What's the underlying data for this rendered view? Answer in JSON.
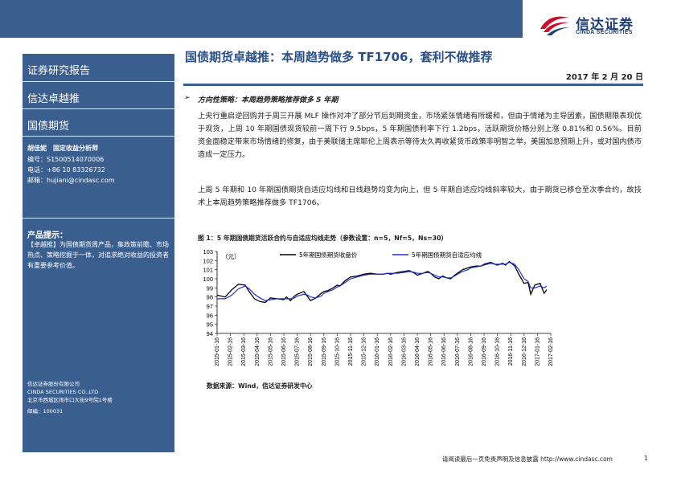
{
  "brand": {
    "name_cn": "信达证券",
    "name_en": "CINDA SECURITIES",
    "primary": "#3a5f8f",
    "accent_red": "#c8102e"
  },
  "sidebar": {
    "sections": [
      "证券研究报告",
      "信达卓越推",
      "国债期货"
    ],
    "analyst_name": "胡佳妮　固定收益分析师",
    "analyst_id": "编号：S1500514070006",
    "analyst_phone": "电话：+86 10 83326732",
    "analyst_email": "邮箱：hujiani@cindasc.com",
    "tips_title": "产品提示：",
    "tips_body": "【卓越推】为国债期货周产品，集政策前瞻、市场热点、策略挖掘于一体，对追求绝对收益的投资者有重要参考价值。",
    "company_cn": "信达证券股份有限公司",
    "company_en": "CINDA SECURITIES CO.,LTD",
    "company_addr": "北京市西城区闹市口大街9号院1号楼",
    "company_zip": "邮编：100031"
  },
  "report": {
    "title": "国债期货卓越推：本周趋势做多 TF1706，套利不做推荐",
    "date": "2017 年 2 月 20 日",
    "bullet": "➢",
    "section_head": "方向性策略：本周趋势策略推荐做多 5 年期",
    "para1": "上央行重启逆回购并于周三开展 MLF 操作对冲了部分节后到期资金，市场紧张情绪有所缓和，但由于情绪为主导因素，国债期限表现优于现货，上周 10 年期国债现货较前一周下行 9.5bps，5 年期国债利率下行 1.2bps，活跃期货价格分别上涨 0.81%和 0.56%。目前资金面稳定带来市场情绪的修复，由于美联储主席耶伦上周表示等待太久再收紧货币政策非明智之举，美国加息预期上升，或对国内债市造成一定压力。",
    "para2": "上周 5 年期和 10 年期国债期货自适应均线和日线趋势均变为向上，但 5 年期自适应均线斜率较大，由于期货已移仓至次季合约，故技术上本周趋势策略推荐做多 TF1706。",
    "figure_caption": "图 1：5 年期国债期货活跃合约与自适应均线走势（参数设置：n=5，Nf=5，Ns=30）",
    "source": "数据来源：Wind，信达证券研发中心"
  },
  "chart_data": {
    "type": "line",
    "title": "",
    "ylabel": "（元）",
    "xlabel": "",
    "ylim": [
      94,
      103
    ],
    "yticks": [
      94,
      95,
      96,
      97,
      98,
      99,
      100,
      101,
      102,
      103
    ],
    "x_tick_labels": [
      "2015-01-16",
      "2015-02-16",
      "2015-03-16",
      "2015-04-16",
      "2015-05-16",
      "2015-06-16",
      "2015-07-16",
      "2015-08-16",
      "2015-09-16",
      "2015-10-16",
      "2015-11-16",
      "2015-12-16",
      "2016-01-16",
      "2016-02-16",
      "2016-03-16",
      "2016-04-16",
      "2016-05-16",
      "2016-06-16",
      "2016-07-16",
      "2016-08-16",
      "2016-09-16",
      "2016-10-16",
      "2016-11-16",
      "2016-12-16",
      "2017-01-16",
      "2017-02-16"
    ],
    "legend_position": "top",
    "series": [
      {
        "name": "5年期国债期货收盘价",
        "color": "#000000",
        "values": [
          98.2,
          98.0,
          98.8,
          99.4,
          99.3,
          98.6,
          97.8,
          97.5,
          97.4,
          97.9,
          97.8,
          97.7,
          98.0,
          97.6,
          98.1,
          98.3,
          98.6,
          98.0,
          97.6,
          97.9,
          98.4,
          98.6,
          98.7,
          99.0,
          99.3,
          99.2,
          99.8,
          100.2,
          100.3,
          100.5,
          100.6,
          100.5,
          100.5,
          100.6,
          100.5,
          100.7,
          100.8,
          100.9,
          100.6,
          100.4,
          100.6,
          100.8,
          100.6,
          100.2,
          100.0,
          100.3,
          100.1,
          100.0,
          100.4,
          100.6,
          101.0,
          101.2,
          101.3,
          101.4,
          101.4,
          101.6,
          101.8,
          101.6,
          101.5,
          101.7,
          101.5,
          101.9,
          101.4,
          100.5,
          99.5,
          99.6,
          98.3,
          99.3,
          99.5,
          98.4,
          98.8
        ],
        "t": [
          0,
          0.6,
          1.1,
          1.6,
          2.1,
          2.4,
          2.8,
          3.2,
          3.6,
          4.0,
          4.5,
          5.0,
          5.2,
          5.5,
          5.8,
          6.0,
          6.5,
          6.8,
          7.0,
          7.4,
          7.8,
          8.0,
          8.3,
          8.7,
          9.0,
          9.2,
          9.6,
          10.0,
          10.5,
          11.0,
          11.5,
          12.0,
          12.4,
          12.8,
          13.0,
          13.5,
          14.0,
          14.4,
          14.8,
          15.0,
          15.4,
          15.8,
          16.0,
          16.3,
          16.6,
          16.9,
          17.2,
          17.5,
          17.8,
          18.0,
          18.4,
          18.8,
          19.0,
          19.4,
          19.8,
          20.0,
          20.5,
          20.8,
          21.0,
          21.4,
          21.6,
          21.9,
          22.3,
          22.6,
          23.0,
          23.3,
          23.5,
          23.8,
          24.2,
          24.5,
          24.7
        ]
      },
      {
        "name": "5年期国债期货自适应均线",
        "color": "#1f2fd6",
        "values": [
          97.8,
          97.8,
          98.2,
          98.9,
          99.2,
          98.9,
          98.3,
          97.9,
          97.6,
          97.7,
          97.8,
          97.8,
          97.8,
          97.8,
          97.9,
          98.1,
          98.3,
          98.2,
          98.0,
          97.9,
          98.1,
          98.4,
          98.6,
          98.8,
          99.1,
          99.2,
          99.6,
          100.0,
          100.2,
          100.4,
          100.5,
          100.5,
          100.5,
          100.6,
          100.6,
          100.6,
          100.7,
          100.8,
          100.7,
          100.6,
          100.6,
          100.7,
          100.6,
          100.4,
          100.2,
          100.2,
          100.1,
          100.1,
          100.3,
          100.5,
          100.8,
          101.0,
          101.2,
          101.3,
          101.4,
          101.5,
          101.7,
          101.6,
          101.6,
          101.6,
          101.6,
          101.8,
          101.6,
          101.0,
          100.0,
          99.7,
          99.0,
          99.0,
          99.2,
          99.0,
          99.2
        ],
        "t": [
          0,
          0.6,
          1.1,
          1.6,
          2.1,
          2.4,
          2.8,
          3.2,
          3.6,
          4.0,
          4.5,
          5.0,
          5.2,
          5.5,
          5.8,
          6.0,
          6.5,
          6.8,
          7.0,
          7.4,
          7.8,
          8.0,
          8.3,
          8.7,
          9.0,
          9.2,
          9.6,
          10.0,
          10.5,
          11.0,
          11.5,
          12.0,
          12.4,
          12.8,
          13.0,
          13.5,
          14.0,
          14.4,
          14.8,
          15.0,
          15.4,
          15.8,
          16.0,
          16.3,
          16.6,
          16.9,
          17.2,
          17.5,
          17.8,
          18.0,
          18.4,
          18.8,
          19.0,
          19.4,
          19.8,
          20.0,
          20.5,
          20.8,
          21.0,
          21.4,
          21.6,
          21.9,
          22.3,
          22.6,
          23.0,
          23.3,
          23.5,
          23.8,
          24.2,
          24.5,
          24.7
        ]
      }
    ]
  },
  "footer": {
    "notice": "请阅读最后一页免责声明及信息披露 http://www.cindasc.com",
    "page": "1"
  }
}
